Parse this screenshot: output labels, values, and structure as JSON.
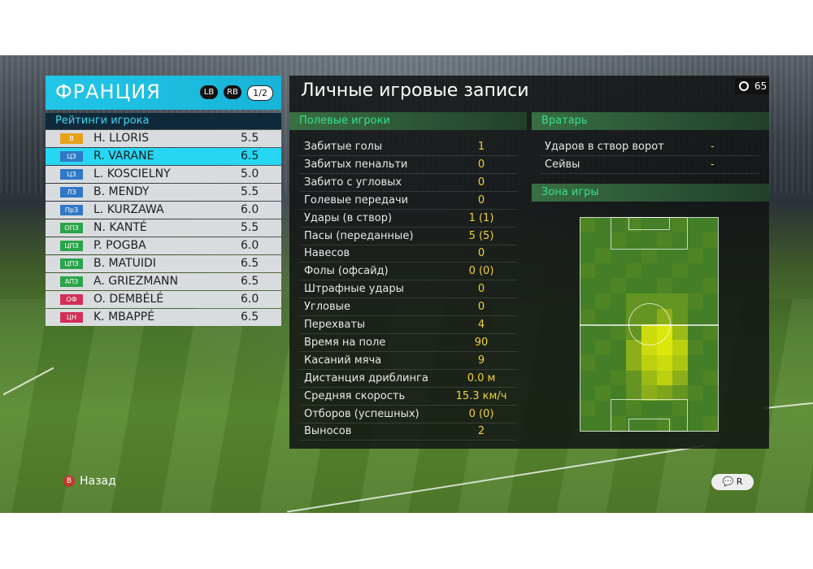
{
  "team": {
    "name": "ФРАНЦИЯ",
    "lb": "LB",
    "rb": "RB",
    "page": "1/2"
  },
  "rating_title": "Рейтинги игрока",
  "players": [
    {
      "pos": "В",
      "name": "H. LLORIS",
      "rating": "5.5",
      "color": "#e6a21a"
    },
    {
      "pos": "ЦЗ",
      "name": "R. VARANE",
      "rating": "6.5",
      "color": "#2f79c6"
    },
    {
      "pos": "ЦЗ",
      "name": "L. KOSCIELNY",
      "rating": "5.0",
      "color": "#2f79c6"
    },
    {
      "pos": "ЛЗ",
      "name": "B. MENDY",
      "rating": "5.5",
      "color": "#2f79c6"
    },
    {
      "pos": "ПрЗ",
      "name": "L. KURZAWA",
      "rating": "6.0",
      "color": "#2f79c6"
    },
    {
      "pos": "ОПЗ",
      "name": "N. KANTÉ",
      "rating": "5.5",
      "color": "#2aa44a"
    },
    {
      "pos": "ЦПЗ",
      "name": "P. POGBA",
      "rating": "6.0",
      "color": "#2aa44a"
    },
    {
      "pos": "ЦПЗ",
      "name": "B. MATUIDI",
      "rating": "6.5",
      "color": "#2aa44a"
    },
    {
      "pos": "АПЗ",
      "name": "A. GRIEZMANN",
      "rating": "6.5",
      "color": "#2aa44a"
    },
    {
      "pos": "ОФ",
      "name": "O. DEMBÉLÉ",
      "rating": "6.0",
      "color": "#d0305a"
    },
    {
      "pos": "ЦН",
      "name": "K. MBAPPÉ",
      "rating": "6.5",
      "color": "#d0305a"
    }
  ],
  "main_title": "Личные игровые записи",
  "clock": "65",
  "field_players": {
    "title": "Полевые игроки",
    "stats": [
      {
        "label": "Забитые голы",
        "value": "1"
      },
      {
        "label": "Забитых пенальти",
        "value": "0"
      },
      {
        "label": "Забито с угловых",
        "value": "0"
      },
      {
        "label": "Голевые передачи",
        "value": "0"
      },
      {
        "label": "Удары (в створ)",
        "value": "1 (1)"
      },
      {
        "label": "Пасы (переданные)",
        "value": "5 (5)"
      },
      {
        "label": "Навесов",
        "value": "0"
      },
      {
        "label": "Фолы (офсайд)",
        "value": "0 (0)"
      },
      {
        "label": "Штрафные удары",
        "value": "0"
      },
      {
        "label": "Угловые",
        "value": "0"
      },
      {
        "label": "Перехваты",
        "value": "4"
      },
      {
        "label": "Время на поле",
        "value": "90"
      },
      {
        "label": "Касаний мяча",
        "value": "9"
      },
      {
        "label": "Дистанция дриблинга",
        "value": "0.0 м"
      },
      {
        "label": "Средняя скорость",
        "value": "15.3 км/ч"
      },
      {
        "label": "Отборов (успешных)",
        "value": "0 (0)"
      },
      {
        "label": "Выносов",
        "value": "2"
      }
    ]
  },
  "goalkeeper": {
    "title": "Вратарь",
    "stats": [
      {
        "label": "Ударов в створ ворот",
        "value": "-"
      },
      {
        "label": "Сейвы",
        "value": "-"
      }
    ]
  },
  "zone_title": "Зона игры",
  "footer": {
    "back_button": "B",
    "back_label": "Назад",
    "icons": "💬 R"
  },
  "colors": {
    "accent": "#22c6e8",
    "stat_value": "#f0d23a",
    "section_text": "#39e08a"
  }
}
